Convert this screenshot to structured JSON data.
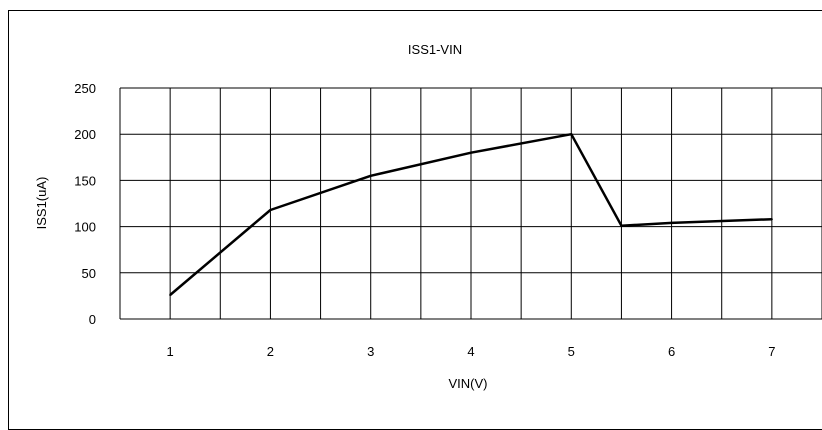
{
  "chart_data": {
    "type": "line",
    "title": "ISS1-VIN",
    "xlabel": "VIN(V)",
    "ylabel": "ISS1(uA)",
    "x_ticks": [
      "1",
      "2",
      "3",
      "4",
      "5",
      "6",
      "7"
    ],
    "y_ticks": [
      "0",
      "50",
      "100",
      "150",
      "200",
      "250"
    ],
    "xlim": [
      0.5,
      7.5
    ],
    "ylim": [
      0,
      250
    ],
    "grid": true,
    "legend": "none",
    "series": [
      {
        "x": [
          1,
          2,
          3,
          4,
          5,
          5.5,
          6,
          7
        ],
        "y": [
          26,
          118,
          155,
          180,
          200,
          101,
          104,
          108
        ]
      }
    ]
  },
  "colors": {
    "line": "#000000",
    "grid": "#000000",
    "background": "#ffffff"
  }
}
